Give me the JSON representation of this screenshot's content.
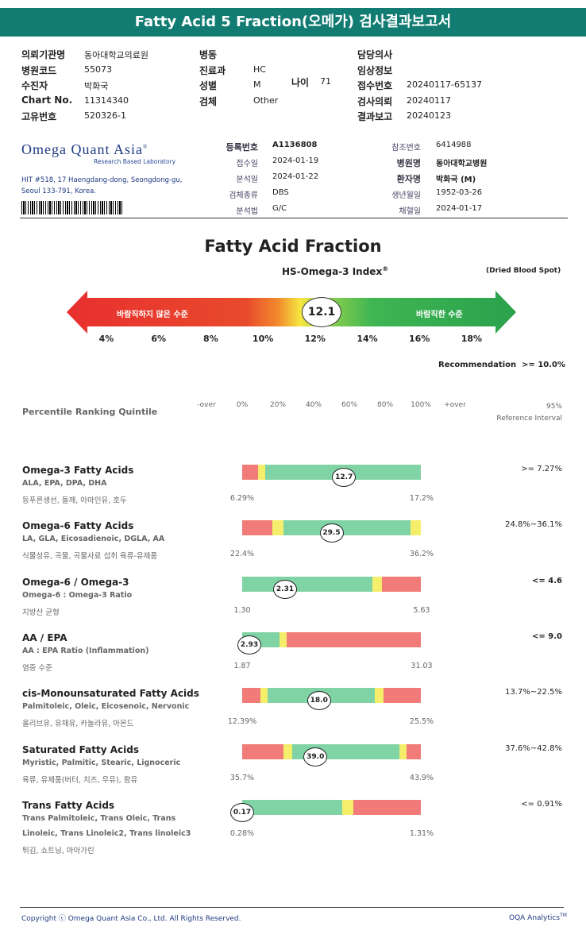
{
  "title": "Fatty Acid 5 Fraction(오메가) 검사결과보고서",
  "header": {
    "col1": [
      {
        "label": "의뢰기관명",
        "value": "동아대학교의료원"
      },
      {
        "label": "병원코드",
        "value": "55073"
      },
      {
        "label": "수진자",
        "value": "박화국"
      },
      {
        "label": "Chart No.",
        "value": "11314340"
      },
      {
        "label": "고유번호",
        "value": "520326-1"
      }
    ],
    "col2": [
      {
        "label": "병동",
        "value": ""
      },
      {
        "label": "진료과",
        "value": "HC"
      },
      {
        "label": "성별",
        "value": "M"
      },
      {
        "label": "검체",
        "value": "Other"
      }
    ],
    "age": {
      "label": "나이",
      "value": "71"
    },
    "col3": [
      {
        "label": "담당의사",
        "value": ""
      },
      {
        "label": "임상정보",
        "value": ""
      },
      {
        "label": "접수번호",
        "value": "20240117-65137"
      },
      {
        "label": "검사의뢰",
        "value": "20240117"
      },
      {
        "label": "결과보고",
        "value": "20240123"
      }
    ]
  },
  "lab": {
    "name": "Omega Quant Asia",
    "tm": "®",
    "subtitle": "Research Based Laboratory",
    "address1": "HIT #518, 17 Haengdang-dong, Seongdong-gu,",
    "address2": "Seoul 133-791, Korea.",
    "left_fields": [
      {
        "label": "등록번호",
        "value": "A1136808",
        "bold": true
      },
      {
        "label": "접수일",
        "value": "2024-01-19"
      },
      {
        "label": "분석일",
        "value": "2024-01-22"
      },
      {
        "label": "검체종류",
        "value": "DBS"
      },
      {
        "label": "분석법",
        "value": "G/C"
      }
    ],
    "right_fields": [
      {
        "label": "참조번호",
        "value": "6414988"
      },
      {
        "label": "병원명",
        "value": "동아대학교병원",
        "bold": true
      },
      {
        "label": "환자명",
        "value": "박화국 (M)",
        "bold": true
      },
      {
        "label": "생년월일",
        "value": "1952-03-26"
      },
      {
        "label": "채혈일",
        "value": "2024-01-17"
      }
    ]
  },
  "index": {
    "main_title": "Fatty Acid Fraction",
    "subtitle": "HS-Omega-3 Index",
    "subtitle_sup": "®",
    "sample": "(Dried Blood Spot)",
    "bad_label": "바람직하지 않은 수준",
    "good_label": "바람직한 수준",
    "value": "12.1",
    "value_num": 12.1,
    "scale": [
      "4%",
      "6%",
      "8%",
      "10%",
      "12%",
      "14%",
      "16%",
      "18%"
    ],
    "recommendation_label": "Recommendation",
    "recommendation_value": ">= 10.0%"
  },
  "percentile": {
    "title": "Percentile Ranking Quintile",
    "ticks": [
      "-over",
      "0%",
      "20%",
      "40%",
      "60%",
      "80%",
      "100%",
      "+over"
    ],
    "ref_line1": "95%",
    "ref_line2": "Reference Interval"
  },
  "rows": [
    {
      "title": "Omega-3 Fatty Acids",
      "sub": "ALA, EPA, DPA, DHA",
      "sub2": "",
      "kr": "등푸른생선, 들깨, 아마인유, 호두",
      "value": "12.7",
      "value_pos": 0.57,
      "low": "6.29%",
      "high": "17.2%",
      "ref": ">= 7.27%",
      "ref_bold": false,
      "segments": [
        {
          "c": "#f07b78",
          "f": 0.09
        },
        {
          "c": "#f4ee6a",
          "f": 0.04
        },
        {
          "c": "#80d3a4",
          "f": 0.87
        }
      ]
    },
    {
      "title": "Omega-6 Fatty Acids",
      "sub": "LA, GLA, Eicosadienoic, DGLA, AA",
      "sub2": "",
      "kr": "식물성유, 곡물, 곡물사료 섭취 육류-유제품",
      "value": "29.5",
      "value_pos": 0.5,
      "low": "22.4%",
      "high": "36.2%",
      "ref": "24.8%~36.1%",
      "ref_bold": false,
      "segments": [
        {
          "c": "#f07b78",
          "f": 0.17
        },
        {
          "c": "#f4ee6a",
          "f": 0.06
        },
        {
          "c": "#80d3a4",
          "f": 0.71
        },
        {
          "c": "#f4ee6a",
          "f": 0.06
        }
      ]
    },
    {
      "title": "Omega-6 / Omega-3",
      "sub": "Omega-6 : Omega-3 Ratio",
      "sub2": "",
      "kr": "지방산 균형",
      "value": "2.31",
      "value_pos": 0.24,
      "low": "1.30",
      "high": "5.63",
      "ref": "<= 4.6",
      "ref_bold": true,
      "segments": [
        {
          "c": "#80d3a4",
          "f": 0.73
        },
        {
          "c": "#f4ee6a",
          "f": 0.05
        },
        {
          "c": "#f07b78",
          "f": 0.22
        }
      ]
    },
    {
      "title": "AA / EPA",
      "sub": "AA : EPA Ratio (Inflammation)",
      "sub2": "",
      "kr": "염증 수준",
      "value": "2.93",
      "value_pos": 0.04,
      "low": "1.87",
      "high": "31.03",
      "ref": "<= 9.0",
      "ref_bold": true,
      "segments": [
        {
          "c": "#80d3a4",
          "f": 0.21
        },
        {
          "c": "#f4ee6a",
          "f": 0.04
        },
        {
          "c": "#f07b78",
          "f": 0.75
        }
      ]
    },
    {
      "title": "cis-Monounsaturated Fatty Acids",
      "sub": "Palmitoleic, Oleic, Eicosenoic, Nervonic",
      "sub2": "",
      "kr": "올리브유, 유채유, 카놀라유, 아몬드",
      "value": "18.0",
      "value_pos": 0.43,
      "low": "12.39%",
      "high": "25.5%",
      "ref": "13.7%~22.5%",
      "ref_bold": false,
      "segments": [
        {
          "c": "#f07b78",
          "f": 0.1
        },
        {
          "c": "#f4ee6a",
          "f": 0.04
        },
        {
          "c": "#80d3a4",
          "f": 0.6
        },
        {
          "c": "#f4ee6a",
          "f": 0.05
        },
        {
          "c": "#f07b78",
          "f": 0.21
        }
      ]
    },
    {
      "title": "Saturated Fatty Acids",
      "sub": "Myristic, Palmitic, Stearic, Lignoceric",
      "sub2": "",
      "kr": "육류, 유제품(버터, 치즈, 우유), 팜유",
      "value": "39.0",
      "value_pos": 0.41,
      "low": "35.7%",
      "high": "43.9%",
      "ref": "37.6%~42.8%",
      "ref_bold": false,
      "segments": [
        {
          "c": "#f07b78",
          "f": 0.23
        },
        {
          "c": "#f4ee6a",
          "f": 0.05
        },
        {
          "c": "#80d3a4",
          "f": 0.6
        },
        {
          "c": "#f4ee6a",
          "f": 0.04
        },
        {
          "c": "#f07b78",
          "f": 0.08
        }
      ]
    },
    {
      "title": "Trans Fatty Acids",
      "sub": "Trans Palmitoleic, Trans Oleic, Trans",
      "sub2": "Linoleic, Trans Linoleic2, Trans linoleic3",
      "kr": "튀김, 쇼트닝, 마아가린",
      "value": "0.17",
      "value_pos": 0.0,
      "low": "0.28%",
      "high": "1.31%",
      "ref": "<= 0.91%",
      "ref_bold": false,
      "segments": [
        {
          "c": "#80d3a4",
          "f": 0.56
        },
        {
          "c": "#f4ee6a",
          "f": 0.06
        },
        {
          "c": "#f07b78",
          "f": 0.38
        }
      ]
    }
  ],
  "footer": {
    "copyright": "Copyright ⓒ Omega Quant Asia Co., Ltd.  All Rights Reserved.",
    "brand": "OQA Analytics",
    "brand_tm": "TM"
  }
}
